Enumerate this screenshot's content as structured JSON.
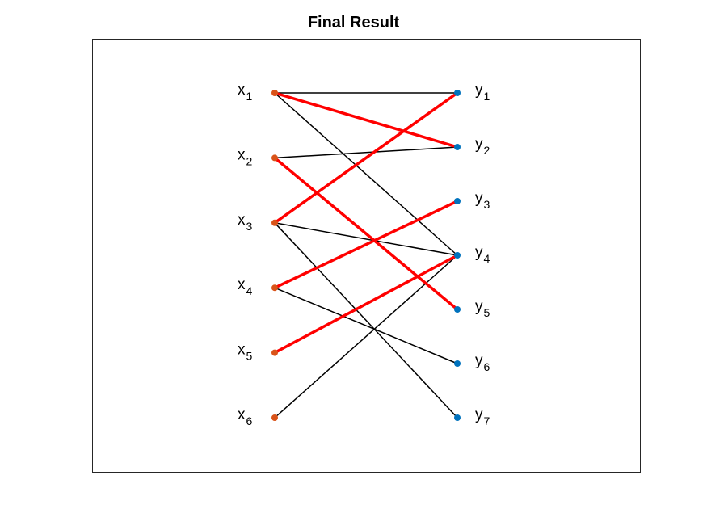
{
  "title": "Final Result",
  "colors": {
    "left_node": "#D95319",
    "right_node": "#0072BD",
    "edge": "#000000",
    "matching": "#FF0000",
    "frame": "#262626"
  },
  "left_nodes": [
    {
      "base": "x",
      "sub": "1"
    },
    {
      "base": "x",
      "sub": "2"
    },
    {
      "base": "x",
      "sub": "3"
    },
    {
      "base": "x",
      "sub": "4"
    },
    {
      "base": "x",
      "sub": "5"
    },
    {
      "base": "x",
      "sub": "6"
    }
  ],
  "right_nodes": [
    {
      "base": "y",
      "sub": "1"
    },
    {
      "base": "y",
      "sub": "2"
    },
    {
      "base": "y",
      "sub": "3"
    },
    {
      "base": "y",
      "sub": "4"
    },
    {
      "base": "y",
      "sub": "5"
    },
    {
      "base": "y",
      "sub": "6"
    },
    {
      "base": "y",
      "sub": "7"
    }
  ],
  "edges": [
    {
      "from": 1,
      "to": 1,
      "matched": false
    },
    {
      "from": 1,
      "to": 4,
      "matched": false
    },
    {
      "from": 2,
      "to": 2,
      "matched": false
    },
    {
      "from": 3,
      "to": 4,
      "matched": false
    },
    {
      "from": 3,
      "to": 7,
      "matched": false
    },
    {
      "from": 4,
      "to": 6,
      "matched": false
    },
    {
      "from": 6,
      "to": 4,
      "matched": false
    },
    {
      "from": 1,
      "to": 2,
      "matched": true
    },
    {
      "from": 2,
      "to": 5,
      "matched": true
    },
    {
      "from": 3,
      "to": 1,
      "matched": true
    },
    {
      "from": 4,
      "to": 3,
      "matched": true
    },
    {
      "from": 5,
      "to": 4,
      "matched": true
    }
  ]
}
